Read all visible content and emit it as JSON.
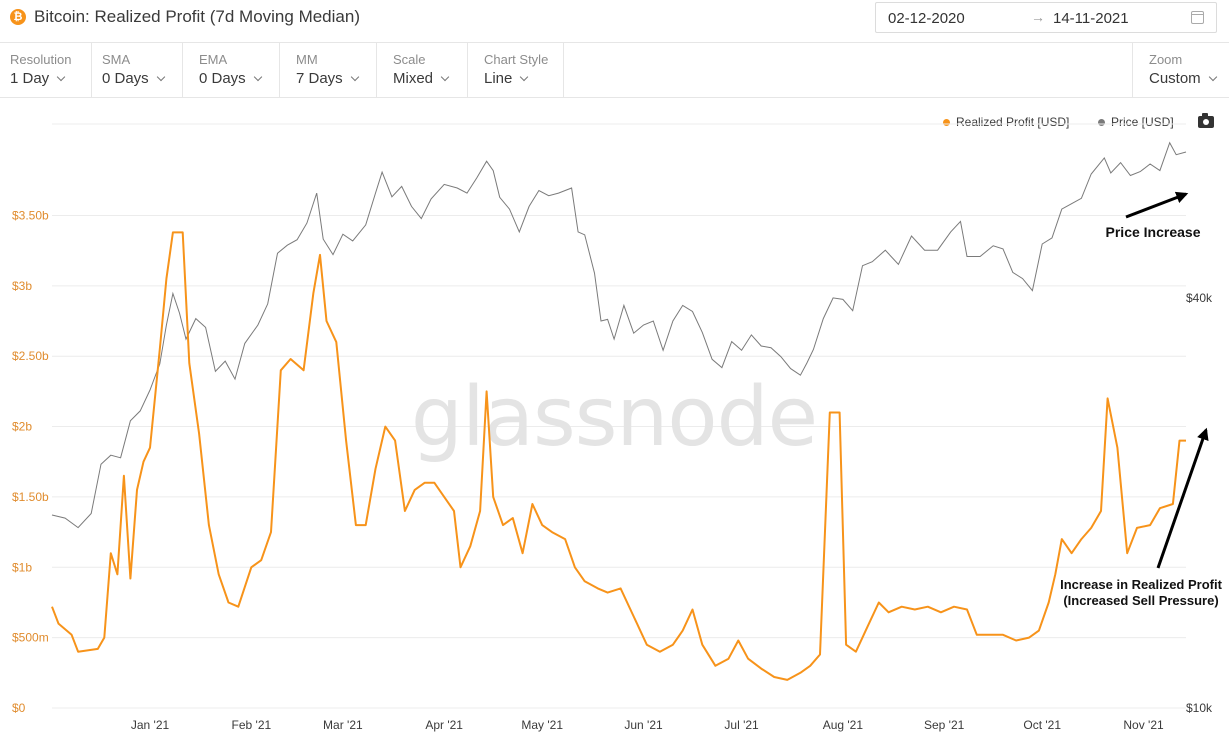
{
  "header": {
    "logo_glyph": "₿",
    "title": "Bitcoin: Realized Profit (7d Moving Median)",
    "date_from": "02-12-2020",
    "date_arrow": "→",
    "date_to": "14-11-2021"
  },
  "toolbar": {
    "resolution": {
      "label": "Resolution",
      "value": "1 Day"
    },
    "sma": {
      "label": "SMA",
      "value": "0 Days"
    },
    "ema": {
      "label": "EMA",
      "value": "0 Days"
    },
    "mm": {
      "label": "MM",
      "value": "7 Days"
    },
    "scale": {
      "label": "Scale",
      "value": "Mixed"
    },
    "chart_style": {
      "label": "Chart Style",
      "value": "Line"
    },
    "zoom": {
      "label": "Zoom",
      "value": "Custom"
    }
  },
  "legend": {
    "realized_profit": "Realized Profit [USD]",
    "price": "Price [USD]"
  },
  "colors": {
    "realized_profit": "#f7931a",
    "price": "#7a7a7a"
  },
  "watermark": "glassnode",
  "annotations": {
    "price": "Price Increase",
    "profit_line1": "Increase in Realized Profit",
    "profit_line2": "(Increased Sell Pressure)"
  },
  "chart_data": {
    "type": "line",
    "x_range": [
      "2020-12-02",
      "2021-11-14"
    ],
    "x_ticks": [
      "Jan '21",
      "Feb '21",
      "Mar '21",
      "Apr '21",
      "May '21",
      "Jun '21",
      "Jul '21",
      "Aug '21",
      "Sep '21",
      "Oct '21",
      "Nov '21"
    ],
    "y_left": {
      "ticks": [
        "$0",
        "$500m",
        "$1b",
        "$1.50b",
        "$2b",
        "$2.50b",
        "$3b",
        "$3.50b"
      ],
      "tick_values": [
        0,
        0.5,
        1,
        1.5,
        2,
        2.5,
        3,
        3.5
      ],
      "unit": "billions USD",
      "range": [
        0,
        4.15
      ]
    },
    "y_right": {
      "ticks": [
        "$10k",
        "$40k"
      ],
      "tick_values": [
        10000,
        40000
      ],
      "scale": "log",
      "range": [
        10000,
        72000
      ]
    },
    "grid": true,
    "legend_position": "top-right",
    "series": [
      {
        "name": "Realized Profit [USD]",
        "axis": "left",
        "points": [
          [
            "2020-12-02",
            0.72
          ],
          [
            "2020-12-04",
            0.6
          ],
          [
            "2020-12-08",
            0.52
          ],
          [
            "2020-12-10",
            0.4
          ],
          [
            "2020-12-16",
            0.42
          ],
          [
            "2020-12-18",
            0.5
          ],
          [
            "2020-12-20",
            1.1
          ],
          [
            "2020-12-22",
            0.95
          ],
          [
            "2020-12-24",
            1.65
          ],
          [
            "2020-12-26",
            0.92
          ],
          [
            "2020-12-28",
            1.55
          ],
          [
            "2020-12-30",
            1.75
          ],
          [
            "2021-01-01",
            1.85
          ],
          [
            "2021-01-04",
            2.55
          ],
          [
            "2021-01-06",
            3.05
          ],
          [
            "2021-01-08",
            3.38
          ],
          [
            "2021-01-11",
            3.38
          ],
          [
            "2021-01-13",
            2.45
          ],
          [
            "2021-01-16",
            1.95
          ],
          [
            "2021-01-19",
            1.3
          ],
          [
            "2021-01-22",
            0.95
          ],
          [
            "2021-01-25",
            0.75
          ],
          [
            "2021-01-28",
            0.72
          ],
          [
            "2021-02-01",
            1.0
          ],
          [
            "2021-02-04",
            1.05
          ],
          [
            "2021-02-07",
            1.25
          ],
          [
            "2021-02-10",
            2.4
          ],
          [
            "2021-02-13",
            2.48
          ],
          [
            "2021-02-17",
            2.4
          ],
          [
            "2021-02-20",
            2.95
          ],
          [
            "2021-02-22",
            3.22
          ],
          [
            "2021-02-24",
            2.75
          ],
          [
            "2021-02-27",
            2.6
          ],
          [
            "2021-03-02",
            1.9
          ],
          [
            "2021-03-05",
            1.3
          ],
          [
            "2021-03-08",
            1.3
          ],
          [
            "2021-03-11",
            1.7
          ],
          [
            "2021-03-14",
            2.0
          ],
          [
            "2021-03-17",
            1.9
          ],
          [
            "2021-03-20",
            1.4
          ],
          [
            "2021-03-23",
            1.55
          ],
          [
            "2021-03-26",
            1.6
          ],
          [
            "2021-03-29",
            1.6
          ],
          [
            "2021-04-01",
            1.5
          ],
          [
            "2021-04-04",
            1.4
          ],
          [
            "2021-04-06",
            1.0
          ],
          [
            "2021-04-09",
            1.15
          ],
          [
            "2021-04-12",
            1.4
          ],
          [
            "2021-04-14",
            2.25
          ],
          [
            "2021-04-16",
            1.5
          ],
          [
            "2021-04-19",
            1.3
          ],
          [
            "2021-04-22",
            1.35
          ],
          [
            "2021-04-25",
            1.1
          ],
          [
            "2021-04-28",
            1.45
          ],
          [
            "2021-05-01",
            1.3
          ],
          [
            "2021-05-04",
            1.25
          ],
          [
            "2021-05-08",
            1.2
          ],
          [
            "2021-05-11",
            1.0
          ],
          [
            "2021-05-14",
            0.9
          ],
          [
            "2021-05-18",
            0.85
          ],
          [
            "2021-05-21",
            0.82
          ],
          [
            "2021-05-25",
            0.85
          ],
          [
            "2021-05-29",
            0.65
          ],
          [
            "2021-06-02",
            0.45
          ],
          [
            "2021-06-06",
            0.4
          ],
          [
            "2021-06-10",
            0.45
          ],
          [
            "2021-06-13",
            0.55
          ],
          [
            "2021-06-16",
            0.7
          ],
          [
            "2021-06-19",
            0.45
          ],
          [
            "2021-06-23",
            0.3
          ],
          [
            "2021-06-27",
            0.35
          ],
          [
            "2021-06-30",
            0.48
          ],
          [
            "2021-07-03",
            0.35
          ],
          [
            "2021-07-07",
            0.28
          ],
          [
            "2021-07-11",
            0.22
          ],
          [
            "2021-07-15",
            0.2
          ],
          [
            "2021-07-19",
            0.25
          ],
          [
            "2021-07-22",
            0.3
          ],
          [
            "2021-07-25",
            0.38
          ],
          [
            "2021-07-28",
            2.1
          ],
          [
            "2021-07-31",
            2.1
          ],
          [
            "2021-08-02",
            0.45
          ],
          [
            "2021-08-05",
            0.4
          ],
          [
            "2021-08-08",
            0.55
          ],
          [
            "2021-08-12",
            0.75
          ],
          [
            "2021-08-15",
            0.68
          ],
          [
            "2021-08-19",
            0.72
          ],
          [
            "2021-08-23",
            0.7
          ],
          [
            "2021-08-27",
            0.72
          ],
          [
            "2021-08-31",
            0.68
          ],
          [
            "2021-09-04",
            0.72
          ],
          [
            "2021-09-08",
            0.7
          ],
          [
            "2021-09-11",
            0.52
          ],
          [
            "2021-09-15",
            0.52
          ],
          [
            "2021-09-19",
            0.52
          ],
          [
            "2021-09-23",
            0.48
          ],
          [
            "2021-09-27",
            0.5
          ],
          [
            "2021-09-30",
            0.55
          ],
          [
            "2021-10-03",
            0.75
          ],
          [
            "2021-10-05",
            0.95
          ],
          [
            "2021-10-07",
            1.2
          ],
          [
            "2021-10-10",
            1.1
          ],
          [
            "2021-10-13",
            1.2
          ],
          [
            "2021-10-16",
            1.28
          ],
          [
            "2021-10-19",
            1.4
          ],
          [
            "2021-10-21",
            2.2
          ],
          [
            "2021-10-24",
            1.85
          ],
          [
            "2021-10-27",
            1.1
          ],
          [
            "2021-10-30",
            1.28
          ],
          [
            "2021-11-03",
            1.3
          ],
          [
            "2021-11-06",
            1.42
          ],
          [
            "2021-11-10",
            1.45
          ],
          [
            "2021-11-12",
            1.9
          ],
          [
            "2021-11-14",
            1.9
          ]
        ]
      },
      {
        "name": "Price [USD]",
        "axis": "right",
        "points": [
          [
            "2020-12-02",
            19200
          ],
          [
            "2020-12-06",
            19000
          ],
          [
            "2020-12-10",
            18400
          ],
          [
            "2020-12-14",
            19300
          ],
          [
            "2020-12-17",
            22800
          ],
          [
            "2020-12-20",
            23500
          ],
          [
            "2020-12-23",
            23300
          ],
          [
            "2020-12-26",
            26400
          ],
          [
            "2020-12-29",
            27300
          ],
          [
            "2021-01-01",
            29300
          ],
          [
            "2021-01-04",
            32000
          ],
          [
            "2021-01-06",
            36500
          ],
          [
            "2021-01-08",
            40600
          ],
          [
            "2021-01-10",
            38000
          ],
          [
            "2021-01-12",
            34800
          ],
          [
            "2021-01-15",
            37300
          ],
          [
            "2021-01-18",
            36200
          ],
          [
            "2021-01-21",
            31200
          ],
          [
            "2021-01-24",
            32300
          ],
          [
            "2021-01-27",
            30400
          ],
          [
            "2021-01-30",
            34300
          ],
          [
            "2021-02-03",
            36500
          ],
          [
            "2021-02-06",
            39200
          ],
          [
            "2021-02-09",
            46500
          ],
          [
            "2021-02-12",
            47800
          ],
          [
            "2021-02-15",
            48700
          ],
          [
            "2021-02-18",
            51500
          ],
          [
            "2021-02-21",
            57000
          ],
          [
            "2021-02-23",
            48800
          ],
          [
            "2021-02-26",
            46300
          ],
          [
            "2021-03-01",
            49600
          ],
          [
            "2021-03-04",
            48500
          ],
          [
            "2021-03-08",
            51200
          ],
          [
            "2021-03-11",
            57000
          ],
          [
            "2021-03-13",
            61200
          ],
          [
            "2021-03-16",
            56300
          ],
          [
            "2021-03-19",
            58300
          ],
          [
            "2021-03-22",
            54500
          ],
          [
            "2021-03-25",
            52300
          ],
          [
            "2021-03-28",
            55900
          ],
          [
            "2021-04-01",
            58700
          ],
          [
            "2021-04-05",
            58000
          ],
          [
            "2021-04-08",
            57000
          ],
          [
            "2021-04-11",
            60000
          ],
          [
            "2021-04-14",
            63500
          ],
          [
            "2021-04-16",
            61500
          ],
          [
            "2021-04-18",
            56200
          ],
          [
            "2021-04-21",
            54000
          ],
          [
            "2021-04-24",
            50000
          ],
          [
            "2021-04-27",
            54500
          ],
          [
            "2021-04-30",
            57500
          ],
          [
            "2021-05-03",
            56500
          ],
          [
            "2021-05-06",
            57000
          ],
          [
            "2021-05-10",
            58000
          ],
          [
            "2021-05-12",
            50000
          ],
          [
            "2021-05-14",
            49500
          ],
          [
            "2021-05-17",
            43500
          ],
          [
            "2021-05-19",
            37000
          ],
          [
            "2021-05-21",
            37200
          ],
          [
            "2021-05-23",
            34800
          ],
          [
            "2021-05-26",
            39000
          ],
          [
            "2021-05-29",
            35500
          ],
          [
            "2021-06-01",
            36500
          ],
          [
            "2021-06-04",
            37000
          ],
          [
            "2021-06-07",
            33500
          ],
          [
            "2021-06-10",
            37000
          ],
          [
            "2021-06-13",
            39000
          ],
          [
            "2021-06-16",
            38200
          ],
          [
            "2021-06-19",
            35600
          ],
          [
            "2021-06-22",
            32500
          ],
          [
            "2021-06-25",
            31600
          ],
          [
            "2021-06-28",
            34500
          ],
          [
            "2021-07-01",
            33500
          ],
          [
            "2021-07-04",
            35300
          ],
          [
            "2021-07-07",
            34000
          ],
          [
            "2021-07-10",
            33800
          ],
          [
            "2021-07-13",
            32800
          ],
          [
            "2021-07-16",
            31500
          ],
          [
            "2021-07-19",
            30800
          ],
          [
            "2021-07-21",
            32100
          ],
          [
            "2021-07-23",
            33600
          ],
          [
            "2021-07-26",
            37300
          ],
          [
            "2021-07-29",
            40000
          ],
          [
            "2021-08-01",
            39800
          ],
          [
            "2021-08-04",
            38300
          ],
          [
            "2021-08-07",
            44600
          ],
          [
            "2021-08-10",
            45200
          ],
          [
            "2021-08-14",
            47000
          ],
          [
            "2021-08-18",
            44800
          ],
          [
            "2021-08-22",
            49300
          ],
          [
            "2021-08-26",
            47000
          ],
          [
            "2021-08-30",
            47000
          ],
          [
            "2021-09-03",
            50000
          ],
          [
            "2021-09-06",
            51800
          ],
          [
            "2021-09-08",
            46000
          ],
          [
            "2021-09-12",
            46000
          ],
          [
            "2021-09-16",
            47700
          ],
          [
            "2021-09-19",
            47200
          ],
          [
            "2021-09-22",
            43600
          ],
          [
            "2021-09-25",
            42700
          ],
          [
            "2021-09-28",
            41000
          ],
          [
            "2021-10-01",
            48000
          ],
          [
            "2021-10-04",
            49000
          ],
          [
            "2021-10-07",
            54000
          ],
          [
            "2021-10-10",
            55000
          ],
          [
            "2021-10-13",
            56000
          ],
          [
            "2021-10-16",
            60800
          ],
          [
            "2021-10-20",
            64200
          ],
          [
            "2021-10-22",
            61000
          ],
          [
            "2021-10-25",
            63200
          ],
          [
            "2021-10-28",
            60500
          ],
          [
            "2021-10-31",
            61300
          ],
          [
            "2021-11-03",
            62900
          ],
          [
            "2021-11-06",
            61500
          ],
          [
            "2021-11-09",
            67600
          ],
          [
            "2021-11-11",
            64900
          ],
          [
            "2021-11-14",
            65500
          ]
        ]
      }
    ]
  }
}
